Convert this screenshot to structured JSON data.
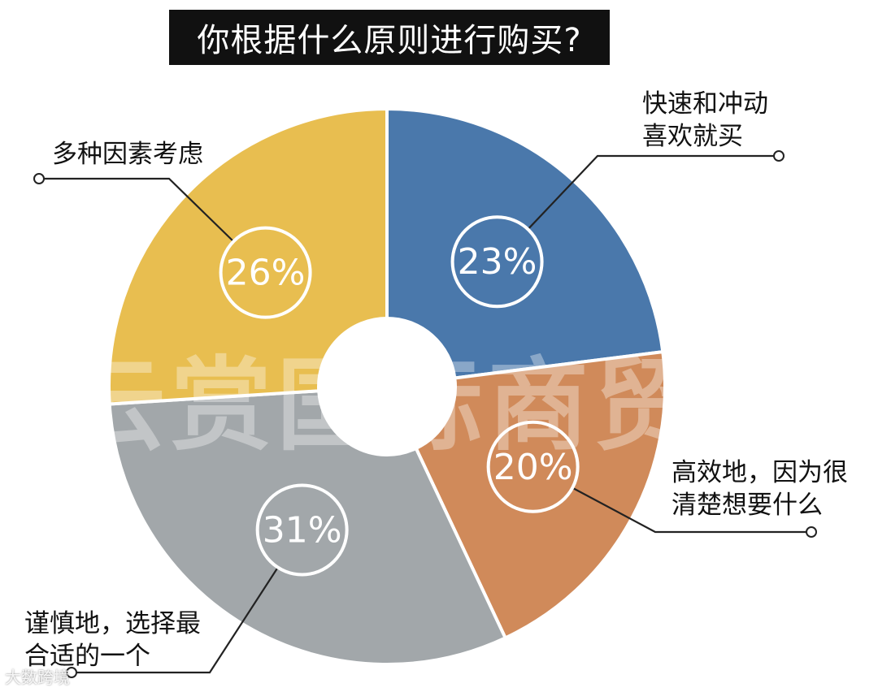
{
  "chart_data": {
    "type": "pie",
    "title": "你根据什么原则进行购买?",
    "slices": [
      {
        "label_lines": [
          "快速和冲动",
          "喜欢就买"
        ],
        "value": 23,
        "display": "23%",
        "color": "#4a78ab"
      },
      {
        "label_lines": [
          "高效地，因为很",
          "清楚想要什么"
        ],
        "value": 20,
        "display": "20%",
        "color": "#d08a5a"
      },
      {
        "label_lines": [
          "谨慎地，选择最",
          "合适的一个"
        ],
        "value": 31,
        "display": "31%",
        "color": "#a2a7aa"
      },
      {
        "label_lines": [
          "多种因素考虑"
        ],
        "value": 26,
        "display": "26%",
        "color": "#e8be50"
      }
    ],
    "legend": "none",
    "inner_hole": true
  },
  "watermark": "云赏国际商贸",
  "corner_mark": "大数跨境"
}
